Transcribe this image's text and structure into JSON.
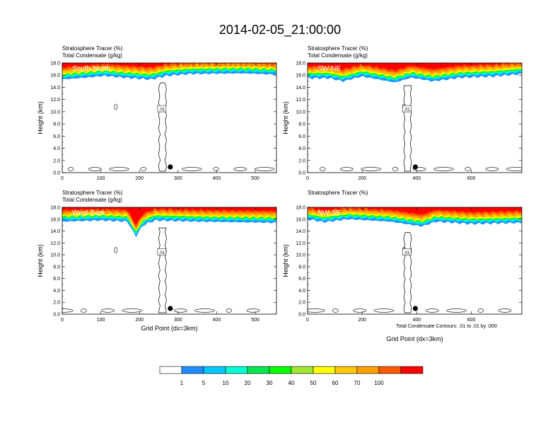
{
  "figure": {
    "title": "2014-02-05_21:00:00",
    "footnote": "Total Condensate Contours: .01 to .01 by .000"
  },
  "colorbar": {
    "colors": [
      "#ffffff",
      "#1e8cff",
      "#00c8ff",
      "#00ffd2",
      "#00e650",
      "#00ff00",
      "#a0e632",
      "#ffff00",
      "#ffc800",
      "#ffa000",
      "#ff5a00",
      "#ff0000"
    ],
    "labels": [
      "1",
      "5",
      "10",
      "20",
      "30",
      "40",
      "50",
      "60",
      "70",
      "100"
    ]
  },
  "chart_data": [
    {
      "type": "heatmap",
      "panel_label": "South-North",
      "line1": "Stratosphere Tracer   (%)",
      "line2": "Total Condensate   (g/kg)",
      "ylabel": "Height (km)",
      "xlabel": "",
      "xlim": [
        0,
        555
      ],
      "ylim": [
        0,
        18
      ],
      "xticks": [
        0,
        100,
        200,
        300,
        400,
        500
      ],
      "yticks": [
        "0.0",
        "2.0",
        "4.0",
        "6.0",
        "8.0",
        "10.0",
        "12.0",
        "14.0",
        "16.0",
        "18.0"
      ],
      "tropopause_km": [
        [
          0,
          15.3
        ],
        [
          60,
          15.6
        ],
        [
          110,
          15.9
        ],
        [
          160,
          15.6
        ],
        [
          230,
          15.3
        ],
        [
          270,
          15.9
        ],
        [
          330,
          16.2
        ],
        [
          470,
          16.3
        ],
        [
          555,
          16.1
        ]
      ],
      "contour_label": ".01",
      "marker_x": 280
    },
    {
      "type": "heatmap",
      "panel_label": "SW-NE",
      "line1": "Stratosphere Tracer   (%)",
      "line2": "Total Condensate   (g/kg)",
      "ylabel": "Height (km)",
      "xlabel": "",
      "xlim": [
        0,
        785
      ],
      "ylim": [
        0,
        18
      ],
      "xticks": [
        0,
        200,
        400,
        600
      ],
      "yticks": [
        "0.0",
        "2.0",
        "4.0",
        "6.0",
        "8.0",
        "10.0",
        "12.0",
        "14.0",
        "16.0",
        "18.0"
      ],
      "tropopause_km": [
        [
          0,
          15.5
        ],
        [
          80,
          15.5
        ],
        [
          130,
          15.0
        ],
        [
          200,
          15.8
        ],
        [
          320,
          14.8
        ],
        [
          380,
          15.6
        ],
        [
          460,
          15.0
        ],
        [
          560,
          15.6
        ],
        [
          680,
          15.8
        ],
        [
          785,
          16.2
        ]
      ],
      "contour_label": ".01",
      "marker_x": 395
    },
    {
      "type": "heatmap",
      "panel_label": "West-East",
      "line1": "Stratosphere Tracer   (%)",
      "line2": "Total Condensate   (g/kg)",
      "ylabel": "Height (km)",
      "xlabel": "Grid Point (dx=3km)",
      "xlim": [
        0,
        555
      ],
      "ylim": [
        0,
        18
      ],
      "xticks": [
        0,
        100,
        200,
        300,
        400,
        500
      ],
      "yticks": [
        "0.0",
        "2.0",
        "4.0",
        "6.0",
        "8.0",
        "10.0",
        "12.0",
        "14.0",
        "16.0",
        "18.0"
      ],
      "tropopause_km": [
        [
          0,
          15.6
        ],
        [
          100,
          15.8
        ],
        [
          170,
          15.6
        ],
        [
          190,
          13.0
        ],
        [
          210,
          15.0
        ],
        [
          240,
          15.8
        ],
        [
          350,
          15.6
        ],
        [
          555,
          15.4
        ]
      ],
      "contour_label": ".01",
      "marker_x": 280
    },
    {
      "type": "heatmap",
      "panel_label": "NW-SE",
      "line1": "Stratosphere Tracer   (%)",
      "line2": "",
      "ylabel": "Height (km)",
      "xlabel": "Grid Point (dx=3km)",
      "xlim": [
        0,
        785
      ],
      "ylim": [
        0,
        18
      ],
      "xticks": [
        0,
        200,
        400,
        600
      ],
      "yticks": [
        "0.0",
        "2.0",
        "4.0",
        "6.0",
        "8.0",
        "10.0",
        "12.0",
        "14.0",
        "16.0",
        "18.0"
      ],
      "tropopause_km": [
        [
          0,
          16.0
        ],
        [
          60,
          15.5
        ],
        [
          150,
          16.0
        ],
        [
          300,
          15.6
        ],
        [
          420,
          14.8
        ],
        [
          470,
          15.6
        ],
        [
          600,
          15.2
        ],
        [
          785,
          15.4
        ]
      ],
      "contour_label": ".01",
      "marker_x": 395
    }
  ]
}
